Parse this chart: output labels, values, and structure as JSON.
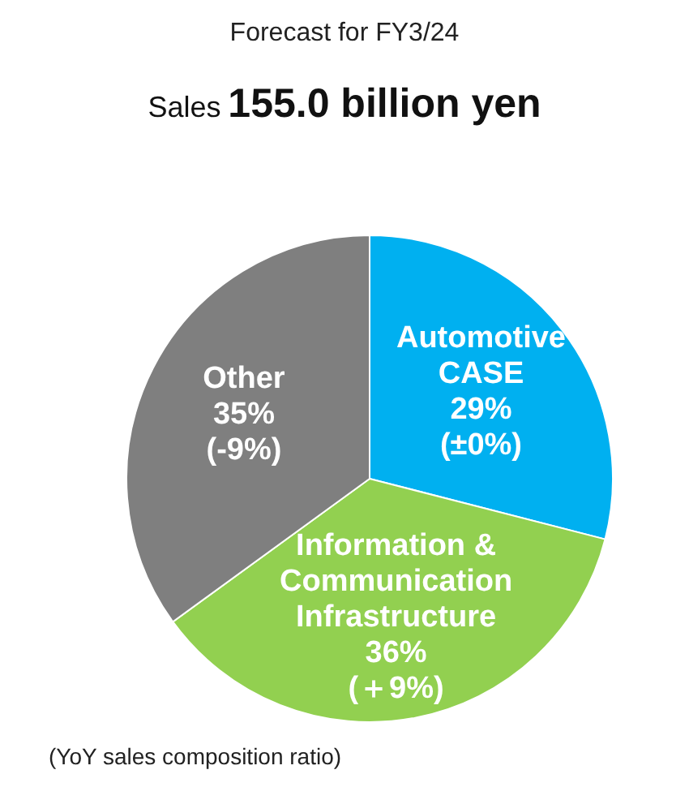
{
  "chart_data": {
    "type": "pie",
    "title": "Forecast for FY3/24",
    "subtitle": "Sales 155.0 billion yen",
    "categories": [
      "Automotive CASE",
      "Information & Communication Infrastructure",
      "Other"
    ],
    "values": [
      29,
      36,
      35
    ],
    "colors": [
      "#00b0f0",
      "#92d050",
      "#7f7f7f"
    ],
    "value_labels": [
      "29%\n(±0%)",
      "36%\n(＋9%)",
      "35%\n(-9%)"
    ],
    "annotations": [
      "(YoY sales composition ratio)"
    ],
    "legend": false
  }
}
